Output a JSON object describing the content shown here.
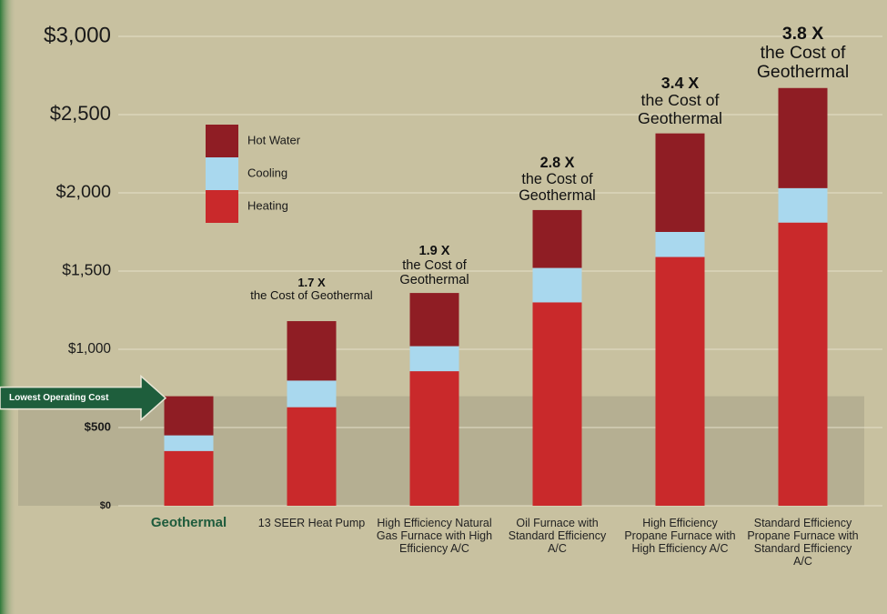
{
  "chart_data": {
    "type": "stacked_bar",
    "categories": [
      "Geothermal",
      "13 SEER Heat Pump",
      "High Efficiency Natural Gas Furnace with High Efficiency A/C",
      "Oil Furnace with Standard Efficiency A/C",
      "High Efficiency Propane Furnace with High Efficiency A/C",
      "Standard Efficiency Propane Furnace with Standard Efficiency A/C"
    ],
    "series": [
      {
        "name": "Heating",
        "color": "#c9292b",
        "values": [
          350,
          630,
          860,
          1300,
          1590,
          1810
        ]
      },
      {
        "name": "Cooling",
        "color": "#a9d8ee",
        "values": [
          100,
          170,
          160,
          220,
          160,
          220
        ]
      },
      {
        "name": "Hot Water",
        "color": "#8f1d24",
        "values": [
          250,
          380,
          340,
          370,
          630,
          640
        ]
      }
    ],
    "ylim": [
      0,
      3000
    ],
    "yticks": [
      {
        "value": 0,
        "label": "$0"
      },
      {
        "value": 500,
        "label": "$500"
      },
      {
        "value": 1000,
        "label": "$1,000"
      },
      {
        "value": 1500,
        "label": "$1,500"
      },
      {
        "value": 2000,
        "label": "$2,000"
      },
      {
        "value": 2500,
        "label": "$2,500"
      },
      {
        "value": 3000,
        "label": "$3,000"
      }
    ],
    "grid": true,
    "legend": "top-left",
    "highlight_label": "Lowest Operating Cost",
    "annotations": [
      {
        "ratio": "1.7 X",
        "text": "the Cost of Geothermal"
      },
      {
        "ratio": "1.9 X",
        "text": "the Cost of Geothermal"
      },
      {
        "ratio": "2.8 X",
        "text": "the Cost of Geothermal"
      },
      {
        "ratio": "3.4 X",
        "text": "the Cost of Geothermal"
      },
      {
        "ratio": "3.8 X",
        "text": "the Cost of Geothermal"
      }
    ]
  }
}
